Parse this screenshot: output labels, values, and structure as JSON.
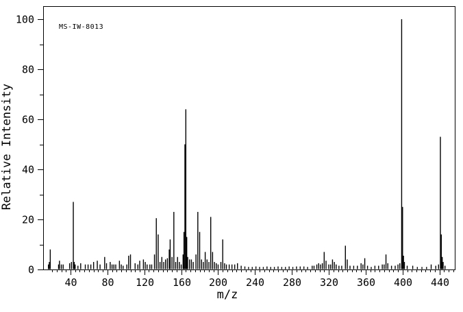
{
  "figure": {
    "annotation": "MS-IW-8013",
    "background_color": "#ffffff",
    "foreground_color": "#000000"
  },
  "chart_data": {
    "type": "bar",
    "title": "",
    "annotation": "MS-IW-8013",
    "xlabel": "m/z",
    "ylabel": "Relative Intensity",
    "xlim": [
      10.3,
      456.6
    ],
    "ylim": [
      0,
      100
    ],
    "grid": false,
    "legend": false,
    "x_major_ticks": [
      40,
      80,
      120,
      160,
      200,
      240,
      280,
      320,
      360,
      400,
      440
    ],
    "x_minor_tick_step": 5,
    "x_minor_tick_range": [
      20,
      455
    ],
    "y_major_ticks": [
      0,
      20,
      40,
      60,
      80,
      100
    ],
    "y_minor_ticks": [
      10,
      30,
      50,
      70,
      90
    ],
    "peaks": [
      [
        16,
        2
      ],
      [
        17,
        3
      ],
      [
        18,
        8
      ],
      [
        27,
        2
      ],
      [
        28,
        3.5
      ],
      [
        30,
        2
      ],
      [
        32,
        2
      ],
      [
        39,
        2.5
      ],
      [
        41,
        3
      ],
      [
        43,
        27
      ],
      [
        44,
        3
      ],
      [
        45,
        2
      ],
      [
        48,
        1.5
      ],
      [
        51,
        2.5
      ],
      [
        56,
        2
      ],
      [
        59,
        2
      ],
      [
        62,
        2
      ],
      [
        65,
        3
      ],
      [
        69,
        3.5
      ],
      [
        72,
        2
      ],
      [
        77,
        5
      ],
      [
        79,
        2.5
      ],
      [
        83,
        3
      ],
      [
        85,
        2
      ],
      [
        87,
        2
      ],
      [
        89,
        2
      ],
      [
        93,
        3.5
      ],
      [
        95,
        2
      ],
      [
        97,
        1.5
      ],
      [
        101,
        2
      ],
      [
        103,
        5.5
      ],
      [
        105,
        6
      ],
      [
        110,
        2.5
      ],
      [
        113,
        2
      ],
      [
        115,
        3.5
      ],
      [
        119,
        4
      ],
      [
        121,
        3
      ],
      [
        123,
        2
      ],
      [
        126,
        2
      ],
      [
        128,
        2
      ],
      [
        131,
        6
      ],
      [
        133,
        20.5
      ],
      [
        135,
        14
      ],
      [
        137,
        3
      ],
      [
        139,
        5
      ],
      [
        141,
        3
      ],
      [
        143,
        4
      ],
      [
        145,
        4.5
      ],
      [
        147,
        8
      ],
      [
        148,
        12
      ],
      [
        150,
        5
      ],
      [
        152,
        23
      ],
      [
        154,
        3
      ],
      [
        156,
        5
      ],
      [
        158,
        3
      ],
      [
        160,
        2
      ],
      [
        162,
        6
      ],
      [
        163,
        15
      ],
      [
        164,
        50
      ],
      [
        165,
        64
      ],
      [
        166,
        13
      ],
      [
        167,
        5
      ],
      [
        169,
        4
      ],
      [
        171,
        4
      ],
      [
        173,
        3
      ],
      [
        176,
        6
      ],
      [
        178,
        23
      ],
      [
        180,
        15
      ],
      [
        182,
        4
      ],
      [
        184,
        3
      ],
      [
        186,
        7
      ],
      [
        188,
        4
      ],
      [
        190,
        3
      ],
      [
        192,
        21
      ],
      [
        194,
        7
      ],
      [
        196,
        3
      ],
      [
        198,
        2.5
      ],
      [
        200,
        2
      ],
      [
        203,
        3
      ],
      [
        205,
        12
      ],
      [
        207,
        2.5
      ],
      [
        209,
        2
      ],
      [
        212,
        2
      ],
      [
        215,
        2
      ],
      [
        218,
        2
      ],
      [
        221,
        2.5
      ],
      [
        225,
        1.5
      ],
      [
        229,
        1.2
      ],
      [
        233,
        1
      ],
      [
        237,
        1
      ],
      [
        241,
        1.2
      ],
      [
        245,
        1
      ],
      [
        249,
        1
      ],
      [
        253,
        1.2
      ],
      [
        257,
        1
      ],
      [
        261,
        1
      ],
      [
        265,
        1.2
      ],
      [
        269,
        1
      ],
      [
        273,
        1
      ],
      [
        277,
        1.2
      ],
      [
        281,
        1
      ],
      [
        285,
        1.2
      ],
      [
        289,
        1.2
      ],
      [
        293,
        1.2
      ],
      [
        297,
        1
      ],
      [
        302,
        1.5
      ],
      [
        304,
        1.5
      ],
      [
        307,
        2
      ],
      [
        309,
        2.5
      ],
      [
        311,
        2
      ],
      [
        313,
        2.5
      ],
      [
        315,
        7
      ],
      [
        317,
        3.5
      ],
      [
        320,
        2
      ],
      [
        322,
        2
      ],
      [
        324,
        4
      ],
      [
        326,
        3
      ],
      [
        328,
        2
      ],
      [
        331,
        1.5
      ],
      [
        334,
        1.5
      ],
      [
        338,
        9.5
      ],
      [
        340,
        4
      ],
      [
        343,
        1.5
      ],
      [
        347,
        1.5
      ],
      [
        351,
        1.5
      ],
      [
        355,
        2.5
      ],
      [
        357,
        2
      ],
      [
        359,
        4.5
      ],
      [
        362,
        1.5
      ],
      [
        366,
        1
      ],
      [
        370,
        1.5
      ],
      [
        374,
        1.5
      ],
      [
        378,
        2
      ],
      [
        380,
        2
      ],
      [
        382,
        6
      ],
      [
        384,
        2.5
      ],
      [
        388,
        1.5
      ],
      [
        392,
        1.5
      ],
      [
        395,
        2
      ],
      [
        397,
        2.5
      ],
      [
        399,
        100
      ],
      [
        400,
        25
      ],
      [
        401,
        5.5
      ],
      [
        402,
        3
      ],
      [
        405,
        1.5
      ],
      [
        411,
        1.5
      ],
      [
        416,
        1
      ],
      [
        421,
        1
      ],
      [
        426,
        1
      ],
      [
        431,
        2
      ],
      [
        436,
        1.5
      ],
      [
        439,
        2
      ],
      [
        441,
        53
      ],
      [
        442,
        14
      ],
      [
        443,
        5
      ],
      [
        444,
        3
      ],
      [
        446,
        1.5
      ]
    ]
  }
}
